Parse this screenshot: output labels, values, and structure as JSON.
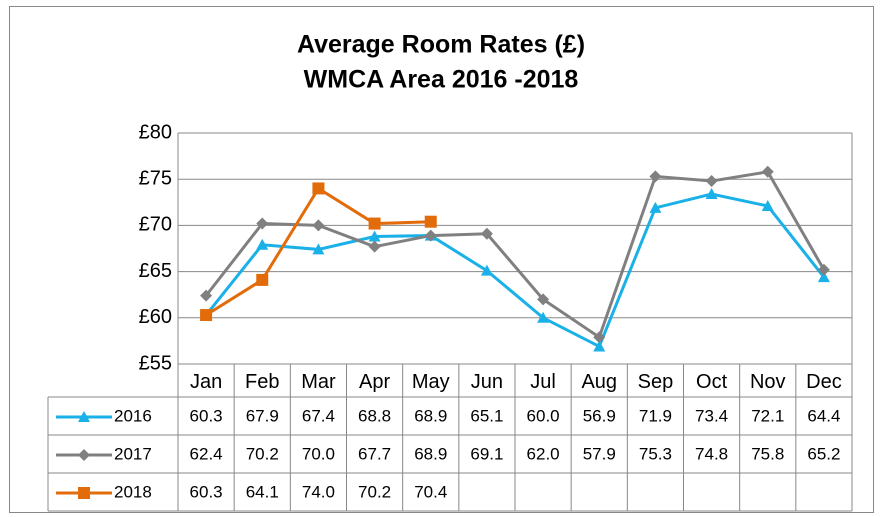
{
  "chart_data": {
    "type": "line",
    "title": [
      "Average Room Rates (£)",
      "WMCA Area 2016 -2018"
    ],
    "categories": [
      "Jan",
      "Feb",
      "Mar",
      "Apr",
      "May",
      "Jun",
      "Jul",
      "Aug",
      "Sep",
      "Oct",
      "Nov",
      "Dec"
    ],
    "ylim": [
      55,
      80
    ],
    "yticks": [
      {
        "value": 55,
        "label": "£55"
      },
      {
        "value": 60,
        "label": "£60"
      },
      {
        "value": 65,
        "label": "£65"
      },
      {
        "value": 70,
        "label": "£70"
      },
      {
        "value": 75,
        "label": "£75"
      },
      {
        "value": 80,
        "label": "£80"
      }
    ],
    "grid": true,
    "series": [
      {
        "name": "2016",
        "color": "#1ab0e8",
        "marker": "triangle",
        "values": [
          60.3,
          67.9,
          67.4,
          68.8,
          68.9,
          65.1,
          60.0,
          56.9,
          71.9,
          73.4,
          72.1,
          64.4
        ],
        "value_labels": [
          "60.3",
          "67.9",
          "67.4",
          "68.8",
          "68.9",
          "65.1",
          "60.0",
          "56.9",
          "71.9",
          "73.4",
          "72.1",
          "64.4"
        ]
      },
      {
        "name": "2017",
        "color": "#808080",
        "marker": "diamond",
        "values": [
          62.4,
          70.2,
          70.0,
          67.7,
          68.9,
          69.1,
          62.0,
          57.9,
          75.3,
          74.8,
          75.8,
          65.2
        ],
        "value_labels": [
          "62.4",
          "70.2",
          "70.0",
          "67.7",
          "68.9",
          "69.1",
          "62.0",
          "57.9",
          "75.3",
          "74.8",
          "75.8",
          "65.2"
        ]
      },
      {
        "name": "2018",
        "color": "#e36c0a",
        "marker": "square",
        "values": [
          60.3,
          64.1,
          74.0,
          70.2,
          70.4,
          null,
          null,
          null,
          null,
          null,
          null,
          null
        ],
        "value_labels": [
          "60.3",
          "64.1",
          "74.0",
          "70.2",
          "70.4",
          null,
          null,
          null,
          null,
          null,
          null,
          null
        ]
      }
    ]
  }
}
